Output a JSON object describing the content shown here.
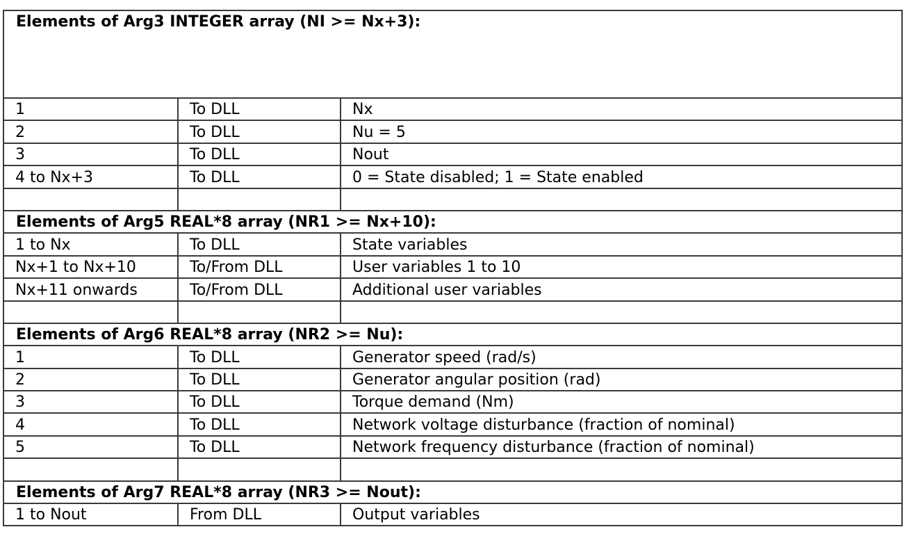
{
  "sections": [
    {
      "title": "Elements of Arg3 INTEGER array (NI >= Nx+3):",
      "rows": [
        [
          "1",
          "To DLL",
          "Nx"
        ],
        [
          "2",
          "To DLL",
          "Nu = 5"
        ],
        [
          "3",
          "To DLL",
          "Nout"
        ],
        [
          "4 to Nx+3",
          "To DLL",
          "0 = State disabled; 1 = State enabled"
        ],
        [
          "",
          "",
          ""
        ]
      ]
    },
    {
      "title": "Elements of Arg5 REAL*8 array (NR1 >= Nx+10):",
      "rows": [
        [
          "1 to Nx",
          "To DLL",
          "State variables"
        ],
        [
          "Nx+1 to Nx+10",
          "To/From DLL",
          "User variables 1 to 10"
        ],
        [
          "Nx+11 onwards",
          "To/From DLL",
          "Additional user variables"
        ],
        [
          "",
          "",
          ""
        ]
      ]
    },
    {
      "title": "Elements of Arg6 REAL*8 array (NR2 >= Nu):",
      "rows": [
        [
          "1",
          "To DLL",
          "Generator speed (rad/s)"
        ],
        [
          "2",
          "To DLL",
          "Generator angular position (rad)"
        ],
        [
          "3",
          "To DLL",
          "Torque demand (Nm)"
        ],
        [
          "4",
          "To DLL",
          "Network voltage disturbance (fraction of nominal)"
        ],
        [
          "5",
          "To DLL",
          "Network frequency disturbance (fraction of nominal)"
        ],
        [
          "",
          "",
          ""
        ]
      ]
    },
    {
      "title": "Elements of Arg7 REAL*8 array (NR3 >= Nout):",
      "rows": [
        [
          "1 to Nout",
          "From DLL",
          "Output variables"
        ]
      ]
    }
  ]
}
